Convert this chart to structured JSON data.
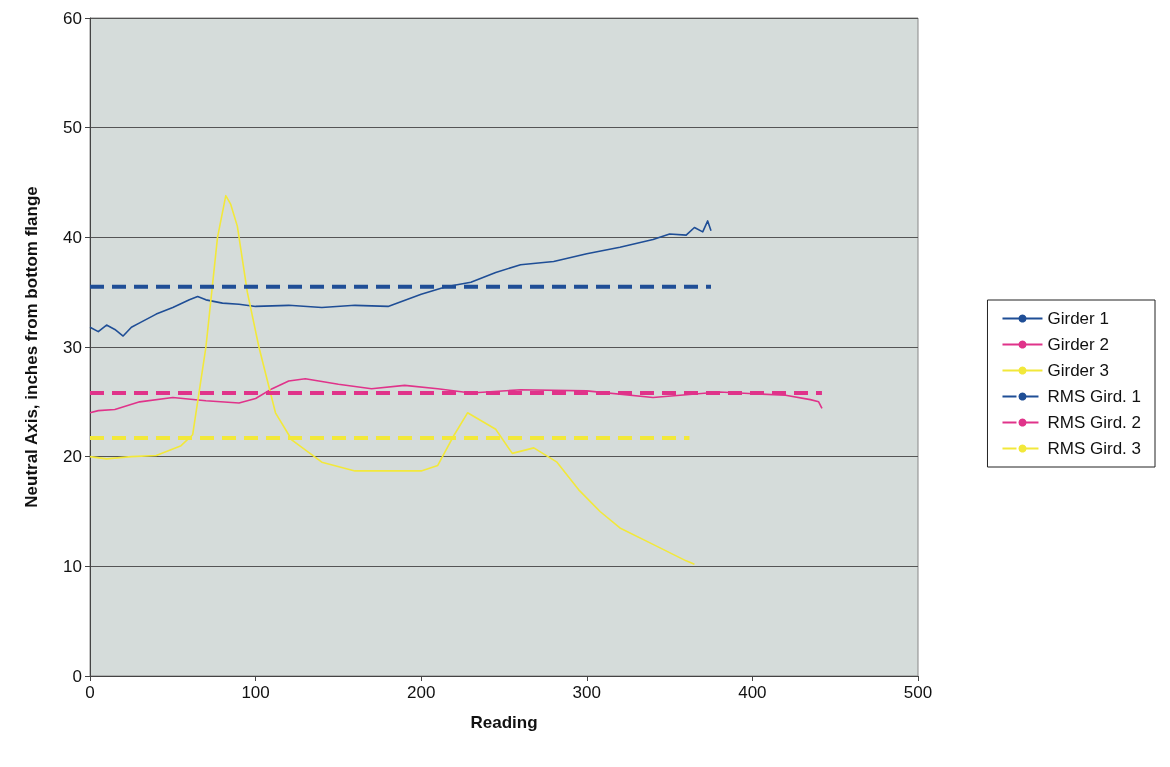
{
  "chart_data": {
    "type": "line",
    "xlabel": "Reading",
    "ylabel": "Neutral Axis, inches from bottom flange",
    "xlim": [
      0,
      500
    ],
    "xticks": [
      0,
      100,
      200,
      300,
      400,
      500
    ],
    "ylim": [
      0,
      60
    ],
    "yticks": [
      0,
      10,
      20,
      30,
      40,
      50,
      60
    ],
    "grid": "y",
    "legend": "right",
    "marker": "none",
    "series": [
      {
        "name": "Girder 1",
        "color": "#1f4e96",
        "line_style": "solid",
        "x": [
          0,
          5,
          10,
          15,
          20,
          25,
          30,
          40,
          50,
          60,
          65,
          70,
          80,
          90,
          100,
          120,
          140,
          160,
          180,
          200,
          215,
          230,
          245,
          260,
          280,
          300,
          320,
          340,
          350,
          360,
          365,
          370,
          373,
          375
        ],
        "values": [
          31.8,
          31.4,
          32,
          31.6,
          31,
          31.8,
          32.2,
          33,
          33.6,
          34.3,
          34.6,
          34.3,
          34,
          33.9,
          33.7,
          33.8,
          33.6,
          33.8,
          33.7,
          34.8,
          35.5,
          35.9,
          36.8,
          37.5,
          37.8,
          38.5,
          39.1,
          39.8,
          40.3,
          40.2,
          40.9,
          40.5,
          41.5,
          40.6
        ]
      },
      {
        "name": "Girder 2",
        "color": "#e0338a",
        "line_style": "solid",
        "x": [
          0,
          5,
          15,
          30,
          50,
          70,
          90,
          100,
          110,
          120,
          130,
          150,
          170,
          190,
          210,
          230,
          260,
          300,
          340,
          380,
          420,
          435,
          440,
          442
        ],
        "values": [
          24,
          24.2,
          24.3,
          25,
          25.4,
          25.1,
          24.9,
          25.3,
          26.2,
          26.9,
          27.1,
          26.6,
          26.2,
          26.5,
          26.2,
          25.8,
          26.1,
          26,
          25.4,
          25.9,
          25.6,
          25.2,
          25,
          24.4
        ]
      },
      {
        "name": "Girder 3",
        "color": "#f2e83a",
        "line_style": "solid",
        "x": [
          0,
          10,
          25,
          40,
          55,
          62,
          66,
          70,
          77,
          82,
          85,
          89,
          95,
          102,
          112,
          122,
          140,
          160,
          200,
          210,
          220,
          228,
          245,
          255,
          268,
          282,
          295,
          308,
          320,
          340,
          360,
          365
        ],
        "values": [
          20,
          19.8,
          20,
          20.1,
          21,
          22,
          26,
          30,
          40,
          43.8,
          43,
          41,
          35,
          30,
          24,
          21.5,
          19.5,
          18.7,
          18.7,
          19.2,
          22,
          24,
          22.5,
          20.3,
          20.8,
          19.5,
          17,
          15,
          13.5,
          12,
          10.5,
          10.2
        ]
      },
      {
        "name": "RMS Gird. 1",
        "color": "#1f4e96",
        "line_style": "dashed",
        "x": [
          0,
          375
        ],
        "values": [
          35.5,
          35.5
        ]
      },
      {
        "name": "RMS Gird. 2",
        "color": "#e0338a",
        "line_style": "dashed",
        "x": [
          0,
          442
        ],
        "values": [
          25.8,
          25.8
        ]
      },
      {
        "name": "RMS Gird. 3",
        "color": "#f2e83a",
        "line_style": "dashed",
        "x": [
          0,
          362
        ],
        "values": [
          21.7,
          21.7
        ]
      }
    ]
  }
}
